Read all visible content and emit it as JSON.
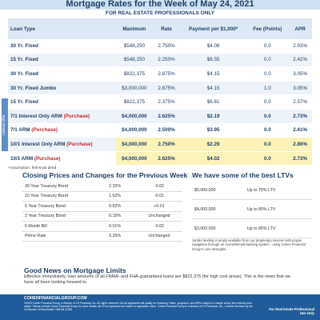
{
  "header": {
    "title": "Mortgage Rates for the Week of May 24, 2021",
    "subtitle": "FOR REAL ESTATE PROFESSIONALS ONLY"
  },
  "rates": {
    "columns": [
      "Loan Type",
      "Maximum",
      "Rate",
      "Payment per $1,000*",
      "Fee (Points)",
      "APR"
    ],
    "side_label": "Limited Offer",
    "rows": [
      [
        {
          "text": "30 Yr. Fixed"
        },
        "$548,250",
        "2.750%",
        "$4.08",
        "0.0",
        "2.93%"
      ],
      [
        {
          "text": "15 Yr. Fixed"
        },
        "$548,250",
        "2.250%",
        "$6.55",
        "0.0",
        "2.42%"
      ],
      [
        {
          "text": "30 Yr. Fixed"
        },
        "$822,375",
        "2.875%",
        "$4.15",
        "0.0",
        "3.05%"
      ],
      [
        {
          "text": "30 Yr. Fixed Jumbo"
        },
        "$3,000,000",
        "2.875%",
        "$4.15",
        "1.0",
        "3.05%"
      ],
      [
        {
          "text": "15 Yr. Fixed"
        },
        "$822,375",
        "2.375%",
        "$6.61",
        "0.0",
        "2.57%"
      ],
      [
        {
          "text": "7/1 Interest Only ARM",
          "tag": "(Purchase)"
        },
        "$4,000,000",
        "2.625%",
        "$2.19",
        "0.0",
        "2.73%"
      ],
      [
        {
          "text": "7/1 ARM",
          "tag": "(Purchase)"
        },
        "$4,000,000",
        "2.500%",
        "$3.95",
        "0.0",
        "2.61%"
      ],
      [
        {
          "text": "10/1 Interest Only ARM",
          "tag": "(Purchase)"
        },
        "$4,000,000",
        "2.750%",
        "$2.29",
        "0.0",
        "2.86%"
      ],
      [
        {
          "text": "10/1 ARM",
          "tag": "(Purchase)"
        },
        "$4,000,000",
        "2.625%",
        "$4.02",
        "0.0",
        "2.73%"
      ]
    ],
    "note": "*Assumption: first-trust deed"
  },
  "closing": {
    "title": "Closing Prices and Changes for the Previous Week",
    "rows": [
      [
        "30 Year Treasury Bond",
        "2.32%",
        "-0.02"
      ],
      [
        "10 Year Treasury Bond",
        "1.62%",
        "-0.01"
      ],
      [
        "5 Year Treasury Bond",
        "0.82%",
        "+0.01"
      ],
      [
        "2 Year Treasury Bond",
        "0.15%",
        "Unchanged"
      ],
      [
        "6 Month Bill",
        "0.01%",
        "-0.02"
      ],
      [
        "Prime Rate",
        "3.25%",
        "Unchanged"
      ]
    ]
  },
  "ltv": {
    "title": "We have some of the best LTVs",
    "rows": [
      [
        "$5,000,000",
        "Up to 75% LTV"
      ],
      [
        "$4,000,000",
        "Up to 80% LTV"
      ],
      [
        "$3,000,000",
        "Up to 85% LTV"
      ]
    ],
    "note": "Jumbo funding is amply available from our proprietary sources with proper navigation through an overwhelmed banking system - using Cohen Financial Group's core strengths."
  },
  "news": {
    "title": "Good News on Mortgage Limits",
    "text": "Effective immediately, loan amounts of all FNMA- and FHA-guaranteed loans are $822,375 (for high cost areas). This is the news that we have all been looking forward to."
  },
  "footer": {
    "site": "COHENFINANCIALGROUP.COM",
    "legal": "©2020 Cohen Financial Group, a division of CS Financial, Inc. All rights reserved. Not all applicants will qualify for financing. Rates, programs, and APRs subject to change at any time without prior notice. Please contact Cohen Financial Group for more details. All LTVs expressed are based on appraised value. Cohen Financial Group is a division of CS Financial, Inc., a broker licensed by the CA Bureau of Real Estate. NMLS# 11552",
    "badge": "For Real Estate Professional Use Only"
  }
}
